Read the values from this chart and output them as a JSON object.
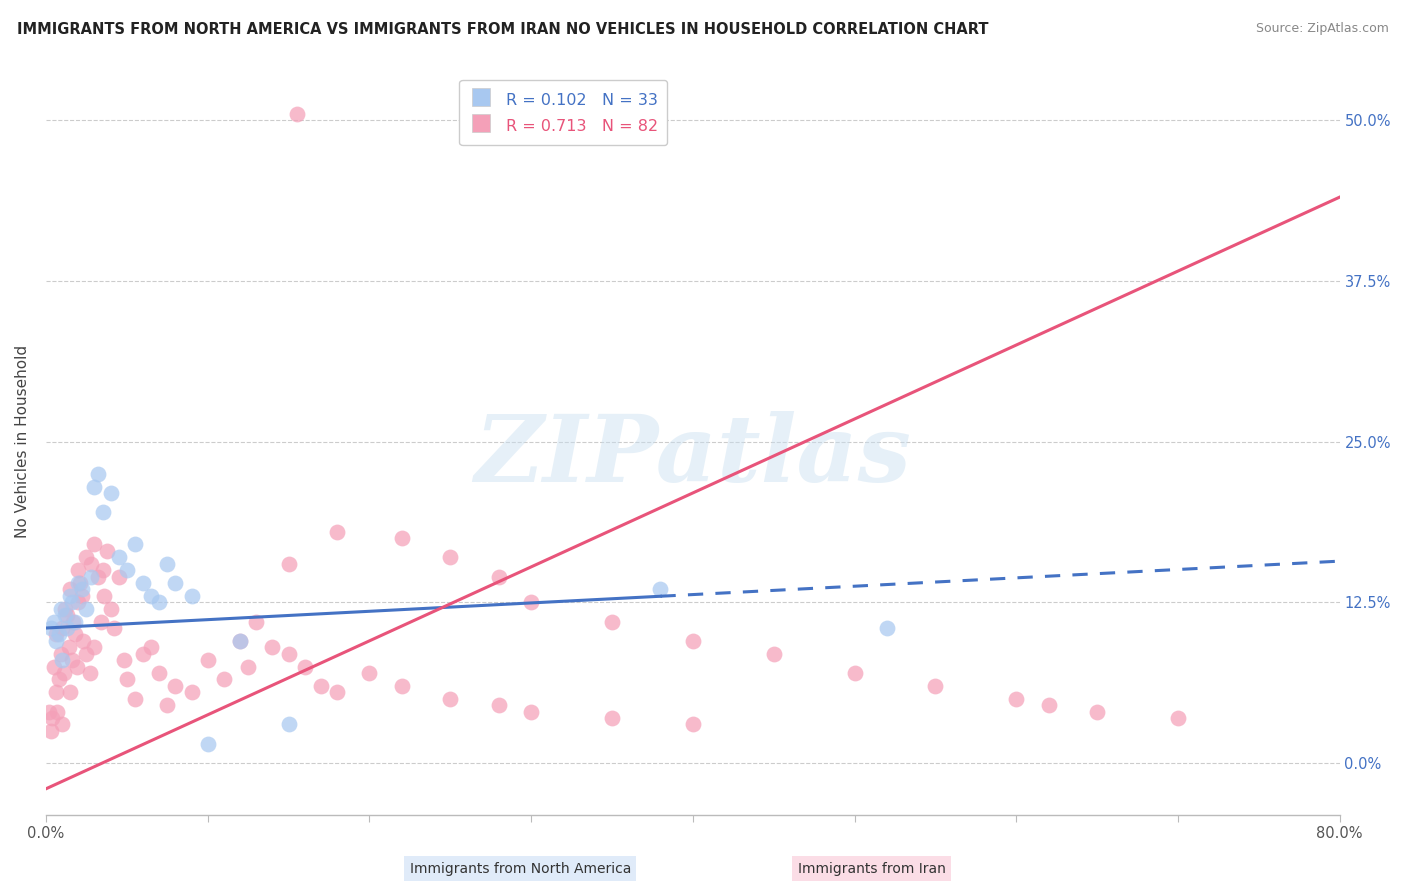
{
  "title": "IMMIGRANTS FROM NORTH AMERICA VS IMMIGRANTS FROM IRAN NO VEHICLES IN HOUSEHOLD CORRELATION CHART",
  "source": "Source: ZipAtlas.com",
  "ylabel": "No Vehicles in Household",
  "ytick_values": [
    0.0,
    12.5,
    25.0,
    37.5,
    50.0
  ],
  "ytick_labels": [
    "0.0%",
    "12.5%",
    "25.0%",
    "37.5%",
    "50.0%"
  ],
  "xlim": [
    0.0,
    80.0
  ],
  "ylim": [
    -4.0,
    54.0
  ],
  "legend_r1": "R = 0.102",
  "legend_n1": "N = 33",
  "legend_r2": "R = 0.713",
  "legend_n2": "N = 82",
  "color_blue": "#A8C8F0",
  "color_pink": "#F4A0B8",
  "color_blue_line": "#4472C4",
  "color_pink_line": "#E8547A",
  "color_blue_text": "#4472C4",
  "color_pink_text": "#E8547A",
  "watermark": "ZIPatlas",
  "na_label": "Immigrants from North America",
  "iran_label": "Immigrants from Iran",
  "north_america_x": [
    0.3,
    0.5,
    0.6,
    0.8,
    0.9,
    1.0,
    1.2,
    1.3,
    1.5,
    1.6,
    1.8,
    2.0,
    2.2,
    2.5,
    2.8,
    3.0,
    3.2,
    3.5,
    4.0,
    4.5,
    5.0,
    5.5,
    6.0,
    6.5,
    7.0,
    7.5,
    8.0,
    9.0,
    10.0,
    12.0,
    15.0,
    38.0,
    52.0
  ],
  "north_america_y": [
    10.5,
    11.0,
    9.5,
    10.0,
    12.0,
    8.0,
    11.5,
    10.5,
    13.0,
    12.5,
    11.0,
    14.0,
    13.5,
    12.0,
    14.5,
    21.5,
    22.5,
    19.5,
    21.0,
    16.0,
    15.0,
    17.0,
    14.0,
    13.0,
    12.5,
    15.5,
    14.0,
    13.0,
    1.5,
    9.5,
    3.0,
    13.5,
    10.5
  ],
  "iran_x": [
    0.2,
    0.3,
    0.4,
    0.5,
    0.6,
    0.6,
    0.7,
    0.8,
    0.9,
    1.0,
    1.0,
    1.1,
    1.2,
    1.3,
    1.4,
    1.5,
    1.5,
    1.6,
    1.7,
    1.8,
    1.9,
    2.0,
    2.0,
    2.1,
    2.2,
    2.3,
    2.5,
    2.5,
    2.7,
    2.8,
    3.0,
    3.0,
    3.2,
    3.4,
    3.5,
    3.6,
    3.8,
    4.0,
    4.2,
    4.5,
    4.8,
    5.0,
    5.5,
    6.0,
    6.5,
    7.0,
    7.5,
    8.0,
    9.0,
    10.0,
    11.0,
    12.0,
    12.5,
    13.0,
    14.0,
    15.0,
    16.0,
    17.0,
    18.0,
    20.0,
    22.0,
    25.0,
    28.0,
    30.0,
    35.0,
    40.0,
    15.0,
    18.0,
    22.0,
    25.0,
    28.0,
    30.0,
    35.0,
    40.0,
    45.0,
    50.0,
    55.0,
    60.0,
    62.0,
    65.0,
    70.0,
    15.5
  ],
  "iran_y": [
    4.0,
    2.5,
    3.5,
    7.5,
    5.5,
    10.0,
    4.0,
    6.5,
    8.5,
    3.0,
    10.5,
    7.0,
    12.0,
    11.5,
    9.0,
    5.5,
    13.5,
    8.0,
    11.0,
    10.0,
    7.5,
    12.5,
    15.0,
    14.0,
    13.0,
    9.5,
    8.5,
    16.0,
    7.0,
    15.5,
    9.0,
    17.0,
    14.5,
    11.0,
    15.0,
    13.0,
    16.5,
    12.0,
    10.5,
    14.5,
    8.0,
    6.5,
    5.0,
    8.5,
    9.0,
    7.0,
    4.5,
    6.0,
    5.5,
    8.0,
    6.5,
    9.5,
    7.5,
    11.0,
    9.0,
    8.5,
    7.5,
    6.0,
    5.5,
    7.0,
    6.0,
    5.0,
    4.5,
    4.0,
    3.5,
    3.0,
    15.5,
    18.0,
    17.5,
    16.0,
    14.5,
    12.5,
    11.0,
    9.5,
    8.5,
    7.0,
    6.0,
    5.0,
    4.5,
    4.0,
    3.5,
    50.5
  ],
  "na_line_x": [
    0.0,
    38.0
  ],
  "na_line_y_intercept": 10.5,
  "na_line_slope": 0.065,
  "na_dash_start": 38.0,
  "iran_line_x": [
    0.0,
    80.0
  ],
  "iran_line_y_intercept": -2.0,
  "iran_line_slope": 0.575
}
